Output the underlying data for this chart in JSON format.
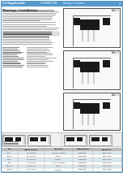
{
  "bg_color": "#ffffff",
  "border_color": "#5599cc",
  "top_bar_color": "#5599cc",
  "header_text_color": "#ffffff",
  "text_gray": "#888888",
  "text_dark": "#333333",
  "diagram_border": "#333333",
  "diagram_bg": "#f8f8f8",
  "block_dark": "#1a1a1a",
  "block_mid": "#555555",
  "table_header_bg": "#bbbbbb",
  "table_alt_bg": "#e0e8f0",
  "table_line": "#999999",
  "bottom_strip_bg": "#f0f0f0",
  "bottom_strip_border": "#999999"
}
